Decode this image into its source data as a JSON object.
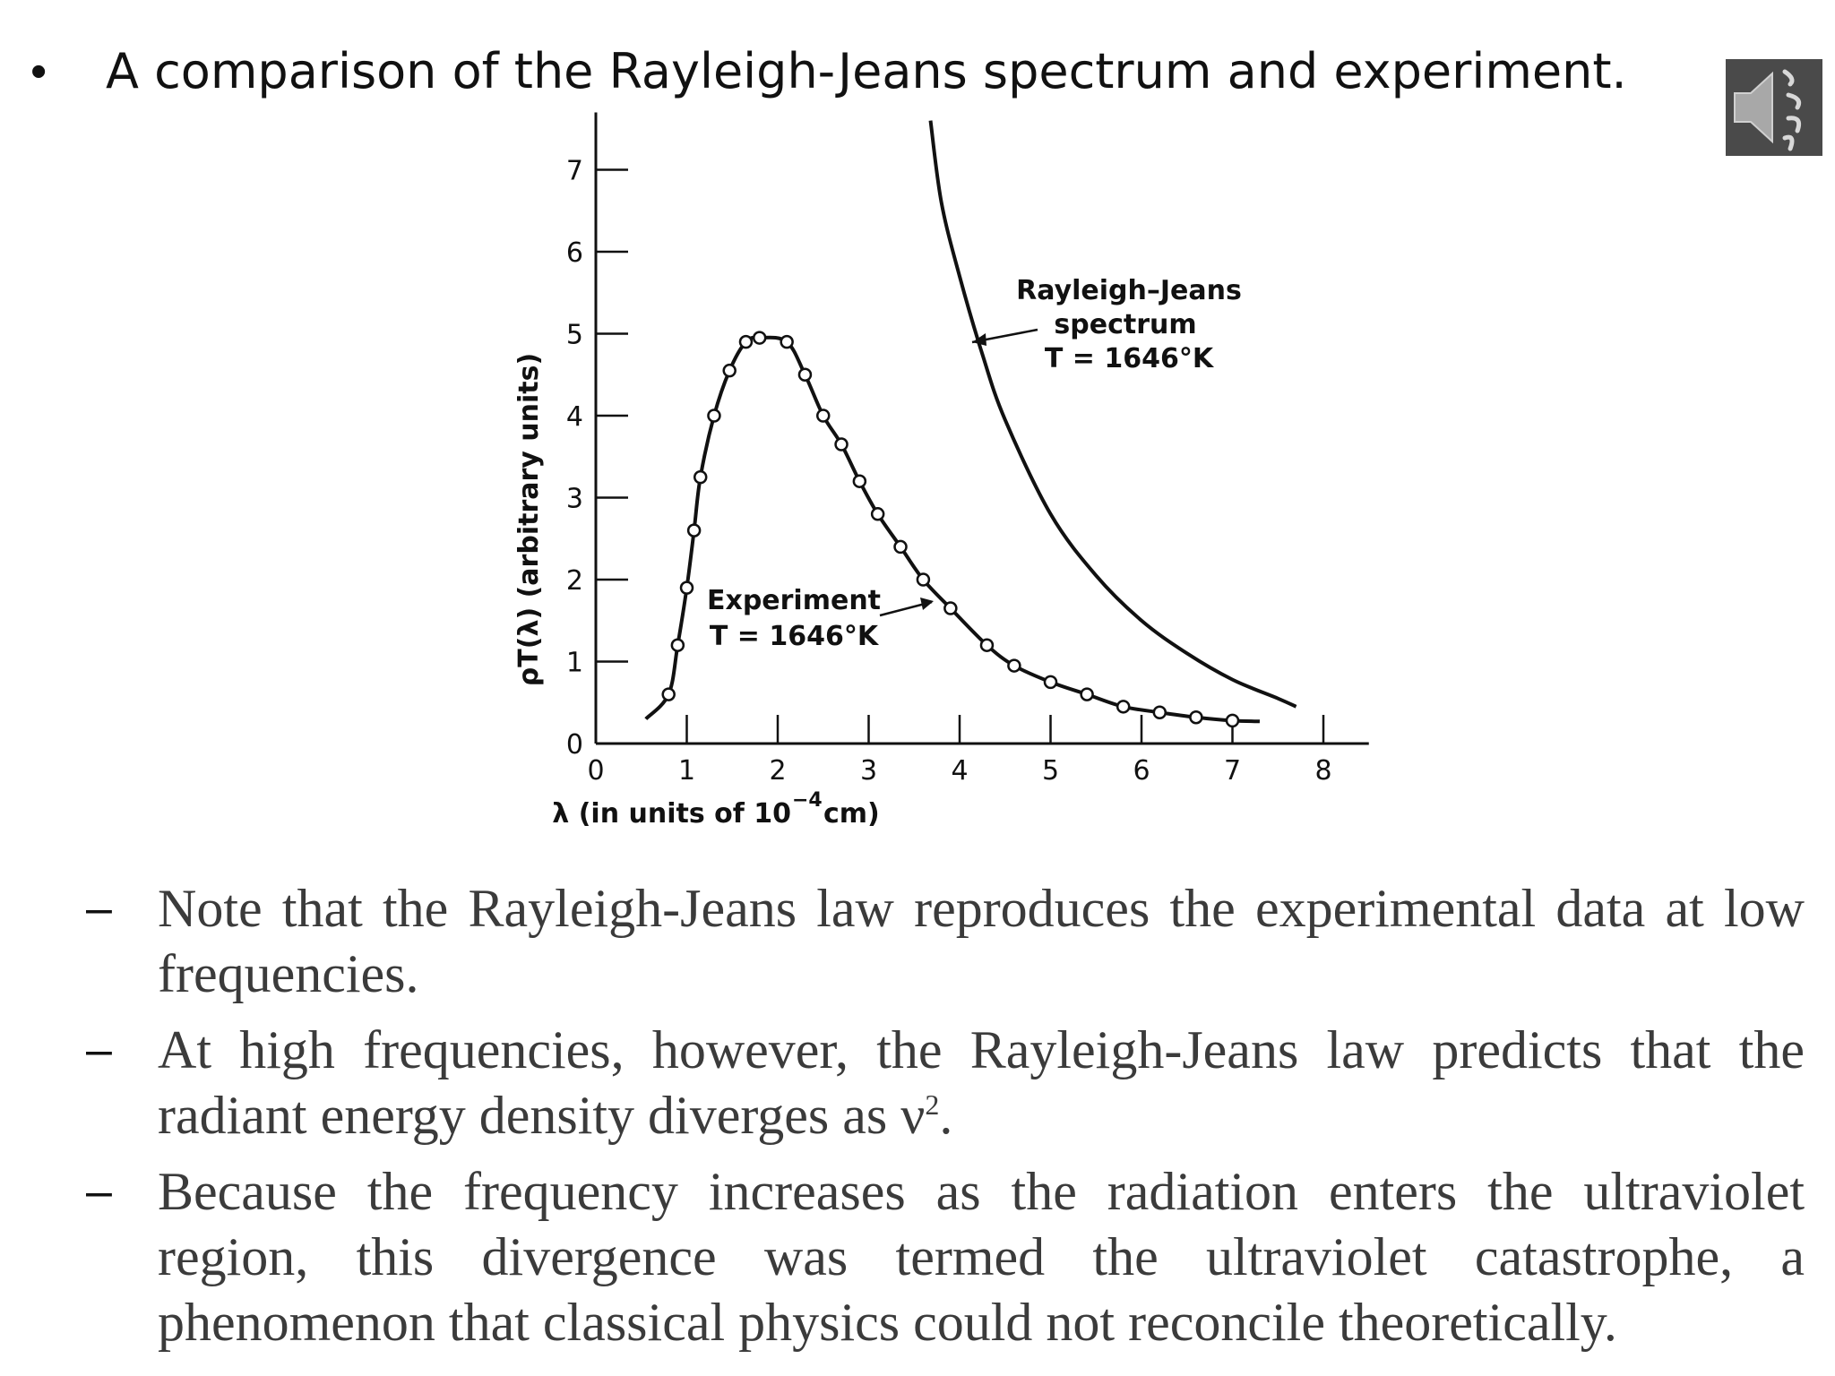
{
  "slide": {
    "title_bullet": "•",
    "title": "A comparison of the Rayleigh-Jeans spectrum and experiment.",
    "audio_icon": "speaker-icon",
    "icon_bg_color": "#4a4a4a",
    "icon_fg_color": "#a8a8a8"
  },
  "chart_data": {
    "type": "line",
    "xlabel_main": "λ (in units of 10",
    "xlabel_sup": "−4",
    "xlabel_end": "cm)",
    "ylabel": "ρT(λ) (arbitrary units)",
    "xlim": [
      0,
      8.5
    ],
    "ylim": [
      0,
      7.7
    ],
    "x_ticks": [
      "0",
      "1",
      "2",
      "3",
      "4",
      "5",
      "6",
      "7",
      "8"
    ],
    "y_ticks": [
      "0",
      "1",
      "2",
      "3",
      "4",
      "5",
      "6",
      "7"
    ],
    "series": [
      {
        "style": "solid-line-with-circles",
        "points": [
          {
            "x": 0.8,
            "y": 0.6
          },
          {
            "x": 0.9,
            "y": 1.2
          },
          {
            "x": 1.0,
            "y": 1.9
          },
          {
            "x": 1.08,
            "y": 2.6
          },
          {
            "x": 1.15,
            "y": 3.25
          },
          {
            "x": 1.3,
            "y": 4.0
          },
          {
            "x": 1.47,
            "y": 4.55
          },
          {
            "x": 1.65,
            "y": 4.9
          },
          {
            "x": 1.8,
            "y": 4.95
          },
          {
            "x": 2.1,
            "y": 4.9
          },
          {
            "x": 2.3,
            "y": 4.5
          },
          {
            "x": 2.5,
            "y": 4.0
          },
          {
            "x": 2.7,
            "y": 3.65
          },
          {
            "x": 2.9,
            "y": 3.2
          },
          {
            "x": 3.1,
            "y": 2.8
          },
          {
            "x": 3.35,
            "y": 2.4
          },
          {
            "x": 3.6,
            "y": 2.0
          },
          {
            "x": 3.9,
            "y": 1.65
          },
          {
            "x": 4.3,
            "y": 1.2
          },
          {
            "x": 4.6,
            "y": 0.95
          },
          {
            "x": 5.0,
            "y": 0.75
          },
          {
            "x": 5.4,
            "y": 0.6
          },
          {
            "x": 5.8,
            "y": 0.45
          },
          {
            "x": 6.2,
            "y": 0.38
          },
          {
            "x": 6.6,
            "y": 0.32
          },
          {
            "x": 7.0,
            "y": 0.28
          }
        ]
      },
      {
        "style": "solid-line",
        "points": [
          {
            "x": 3.68,
            "y": 7.6
          },
          {
            "x": 3.8,
            "y": 6.6
          },
          {
            "x": 4.0,
            "y": 5.7
          },
          {
            "x": 4.25,
            "y": 4.75
          },
          {
            "x": 4.5,
            "y": 3.95
          },
          {
            "x": 5.0,
            "y": 2.8
          },
          {
            "x": 5.5,
            "y": 2.05
          },
          {
            "x": 6.0,
            "y": 1.5
          },
          {
            "x": 6.5,
            "y": 1.1
          },
          {
            "x": 7.0,
            "y": 0.78
          },
          {
            "x": 7.5,
            "y": 0.55
          },
          {
            "x": 7.7,
            "y": 0.45
          }
        ]
      }
    ],
    "experiment_tail": [
      {
        "x": 0.55,
        "y": 0.3
      },
      {
        "x": 7.3,
        "y": 0.27
      }
    ],
    "annotations": {
      "rj_line1": "Rayleigh–Jeans",
      "rj_line2": "spectrum",
      "rj_line3": "T = 1646°K",
      "exp_line1": "Experiment",
      "exp_line2": "T = 1646°K"
    }
  },
  "bullets": [
    {
      "dash": "–",
      "text": "Note that the Rayleigh-Jeans law reproduces the experimental data at low frequencies.",
      "sup": ""
    },
    {
      "dash": "–",
      "text": "At high frequencies, however, the Rayleigh-Jeans law predicts that the radiant energy density diverges as ν",
      "sup": "2",
      "after": "."
    },
    {
      "dash": "–",
      "text": "Because the frequency increases as the radiation enters the ultraviolet region, this divergence was termed the ultraviolet catastrophe, a phenomenon that classical physics could not reconcile theoretically.",
      "sup": ""
    }
  ]
}
